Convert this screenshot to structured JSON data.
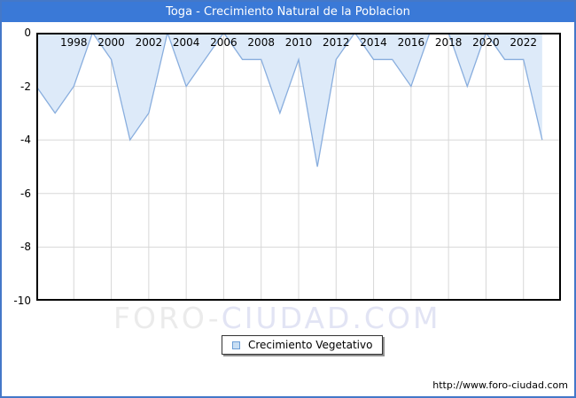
{
  "title": "Toga - Crecimiento Natural de la Poblacion",
  "colors": {
    "titlebar": "#3a79d7",
    "frame_border": "#4478c8",
    "plot_border": "#000000",
    "grid": "#d8d8d8",
    "area_fill": "#ddeaf9",
    "line": "#89aede"
  },
  "legend": {
    "label": "Crecimiento Vegetativo"
  },
  "watermark": {
    "part1": "FORO-",
    "part2": "CIUDAD.COM"
  },
  "footer": {
    "url": "http://www.foro-ciudad.com"
  },
  "chart_data": {
    "type": "area",
    "title": "Toga - Crecimiento Natural de la Poblacion",
    "series_name": "Crecimiento Vegetativo",
    "x": [
      1996,
      1997,
      1998,
      1999,
      2000,
      2001,
      2002,
      2003,
      2004,
      2005,
      2006,
      2007,
      2008,
      2009,
      2010,
      2011,
      2012,
      2013,
      2014,
      2015,
      2016,
      2017,
      2018,
      2019,
      2020,
      2021,
      2022,
      2023
    ],
    "values": [
      -2,
      -3,
      -2,
      0,
      -1,
      -4,
      -3,
      0,
      -2,
      -1,
      0,
      -1,
      -1,
      -3,
      -1,
      -5,
      -1,
      0,
      -1,
      -1,
      -2,
      0,
      0,
      -2,
      0,
      -1,
      -1,
      -4
    ],
    "xlim": [
      1996,
      2024
    ],
    "ylim": [
      -10,
      0
    ],
    "x_tick_years": [
      1998,
      2000,
      2002,
      2004,
      2006,
      2008,
      2010,
      2012,
      2014,
      2016,
      2018,
      2020,
      2022
    ],
    "y_ticks": [
      0,
      -2,
      -4,
      -6,
      -8,
      -10
    ],
    "y_tick_labels": [
      "0",
      "-2",
      "-4",
      "-6",
      "-8",
      "-10"
    ],
    "grid": true,
    "legend_position": "bottom-center",
    "xlabel": "",
    "ylabel": ""
  }
}
